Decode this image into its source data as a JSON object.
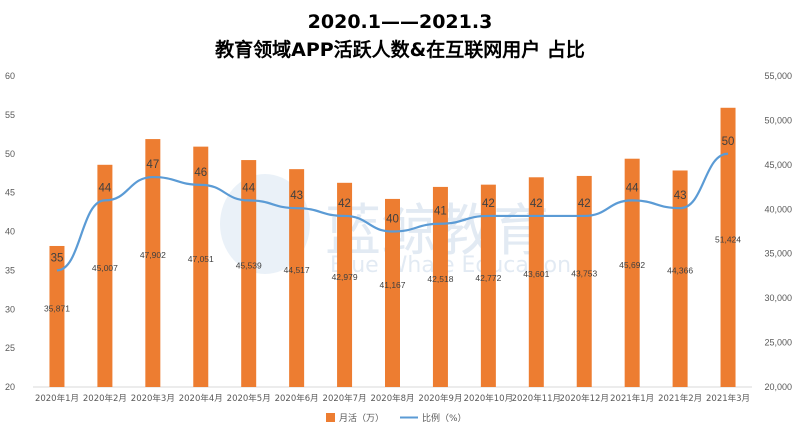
{
  "chart_data": {
    "type": "bar+line",
    "title_line1": "2020.1——2021.3",
    "title_line2": "教育领域APP活跃人数&在互联网用户 占比",
    "categories": [
      "2020年1月",
      "2020年2月",
      "2020年3月",
      "2020年4月",
      "2020年5月",
      "2020年6月",
      "2020年7月",
      "2020年8月",
      "2020年9月",
      "2020年10月",
      "2020年11月",
      "2020年12月",
      "2021年1月",
      "2021年2月",
      "2021年3月"
    ],
    "series": [
      {
        "name": "月活（万）",
        "type": "bar",
        "axis": "right",
        "color": "#ED7D31",
        "values": [
          35871,
          45007,
          47902,
          47051,
          45539,
          44517,
          42979,
          41167,
          42518,
          42772,
          43601,
          43753,
          45692,
          44366,
          51424
        ],
        "labels": [
          "35,871",
          "45,007",
          "47,902",
          "47,051",
          "45,539",
          "44,517",
          "42,979",
          "41,167",
          "42,518",
          "42,772",
          "43,601",
          "43,753",
          "45,692",
          "44,366",
          "51,424"
        ]
      },
      {
        "name": "比例（%）",
        "type": "line",
        "axis": "left",
        "color": "#5B9BD5",
        "values": [
          35,
          44,
          47,
          46,
          44,
          43,
          42,
          40,
          41,
          42,
          42,
          42,
          44,
          43,
          50
        ],
        "labels": [
          "35",
          "44",
          "47",
          "46",
          "44",
          "43",
          "42",
          "40",
          "41",
          "42",
          "42",
          "42",
          "44",
          "43",
          "50"
        ]
      }
    ],
    "left_axis": {
      "min": 20,
      "max": 60,
      "ticks": [
        "20",
        "25",
        "30",
        "35",
        "40",
        "45",
        "50",
        "55",
        "60"
      ]
    },
    "right_axis": {
      "min": 20000,
      "max": 55000,
      "ticks": [
        "20,000",
        "25,000",
        "30,000",
        "35,000",
        "40,000",
        "45,000",
        "50,000",
        "55,000"
      ]
    },
    "legend_position": "bottom-center",
    "grid": false
  },
  "watermark": {
    "cn": "蓝鲸教育",
    "en": "Blue Whale Education"
  }
}
